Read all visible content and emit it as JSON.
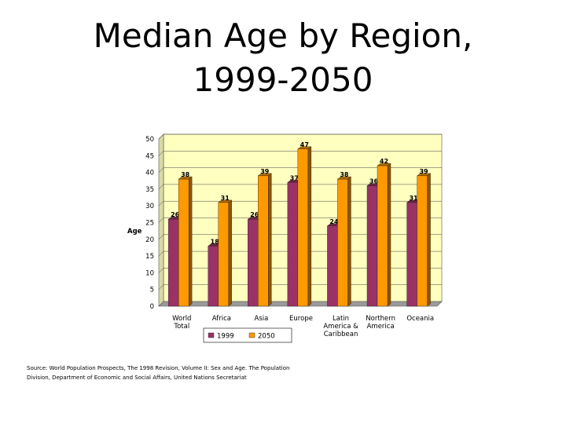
{
  "slide": {
    "title_line1": "Median Age by Region,",
    "title_line2": "1999-2050",
    "source": "Source: World Population Prospects, The 1998 Revision, Volume II: Sex and Age. The Population Division, Department of Economic and Social Affairs, United Nations Secretariat"
  },
  "colors": {
    "wall": "#ffffc0",
    "floor": "#9a9a9a",
    "series_1999": "#993366",
    "series_2050": "#ff9900"
  },
  "chart_data": {
    "type": "bar",
    "title": "",
    "xlabel": "",
    "ylabel": "Age",
    "ylim": [
      0,
      50
    ],
    "yticks": [
      "0",
      "5",
      "10",
      "15",
      "20",
      "25",
      "30",
      "35",
      "40",
      "45",
      "50"
    ],
    "categories": [
      [
        "World",
        "Total"
      ],
      [
        "Africa"
      ],
      [
        "Asia"
      ],
      [
        "Europe"
      ],
      [
        "Latin",
        "America &",
        "Caribbean"
      ],
      [
        "Northern",
        "America"
      ],
      [
        "Oceania"
      ]
    ],
    "series": [
      {
        "name": "1999",
        "values": [
          26,
          18,
          26,
          37,
          24,
          36,
          31
        ]
      },
      {
        "name": "2050",
        "values": [
          38,
          31,
          39,
          47,
          38,
          42,
          39
        ]
      }
    ],
    "legend_position": "bottom"
  }
}
